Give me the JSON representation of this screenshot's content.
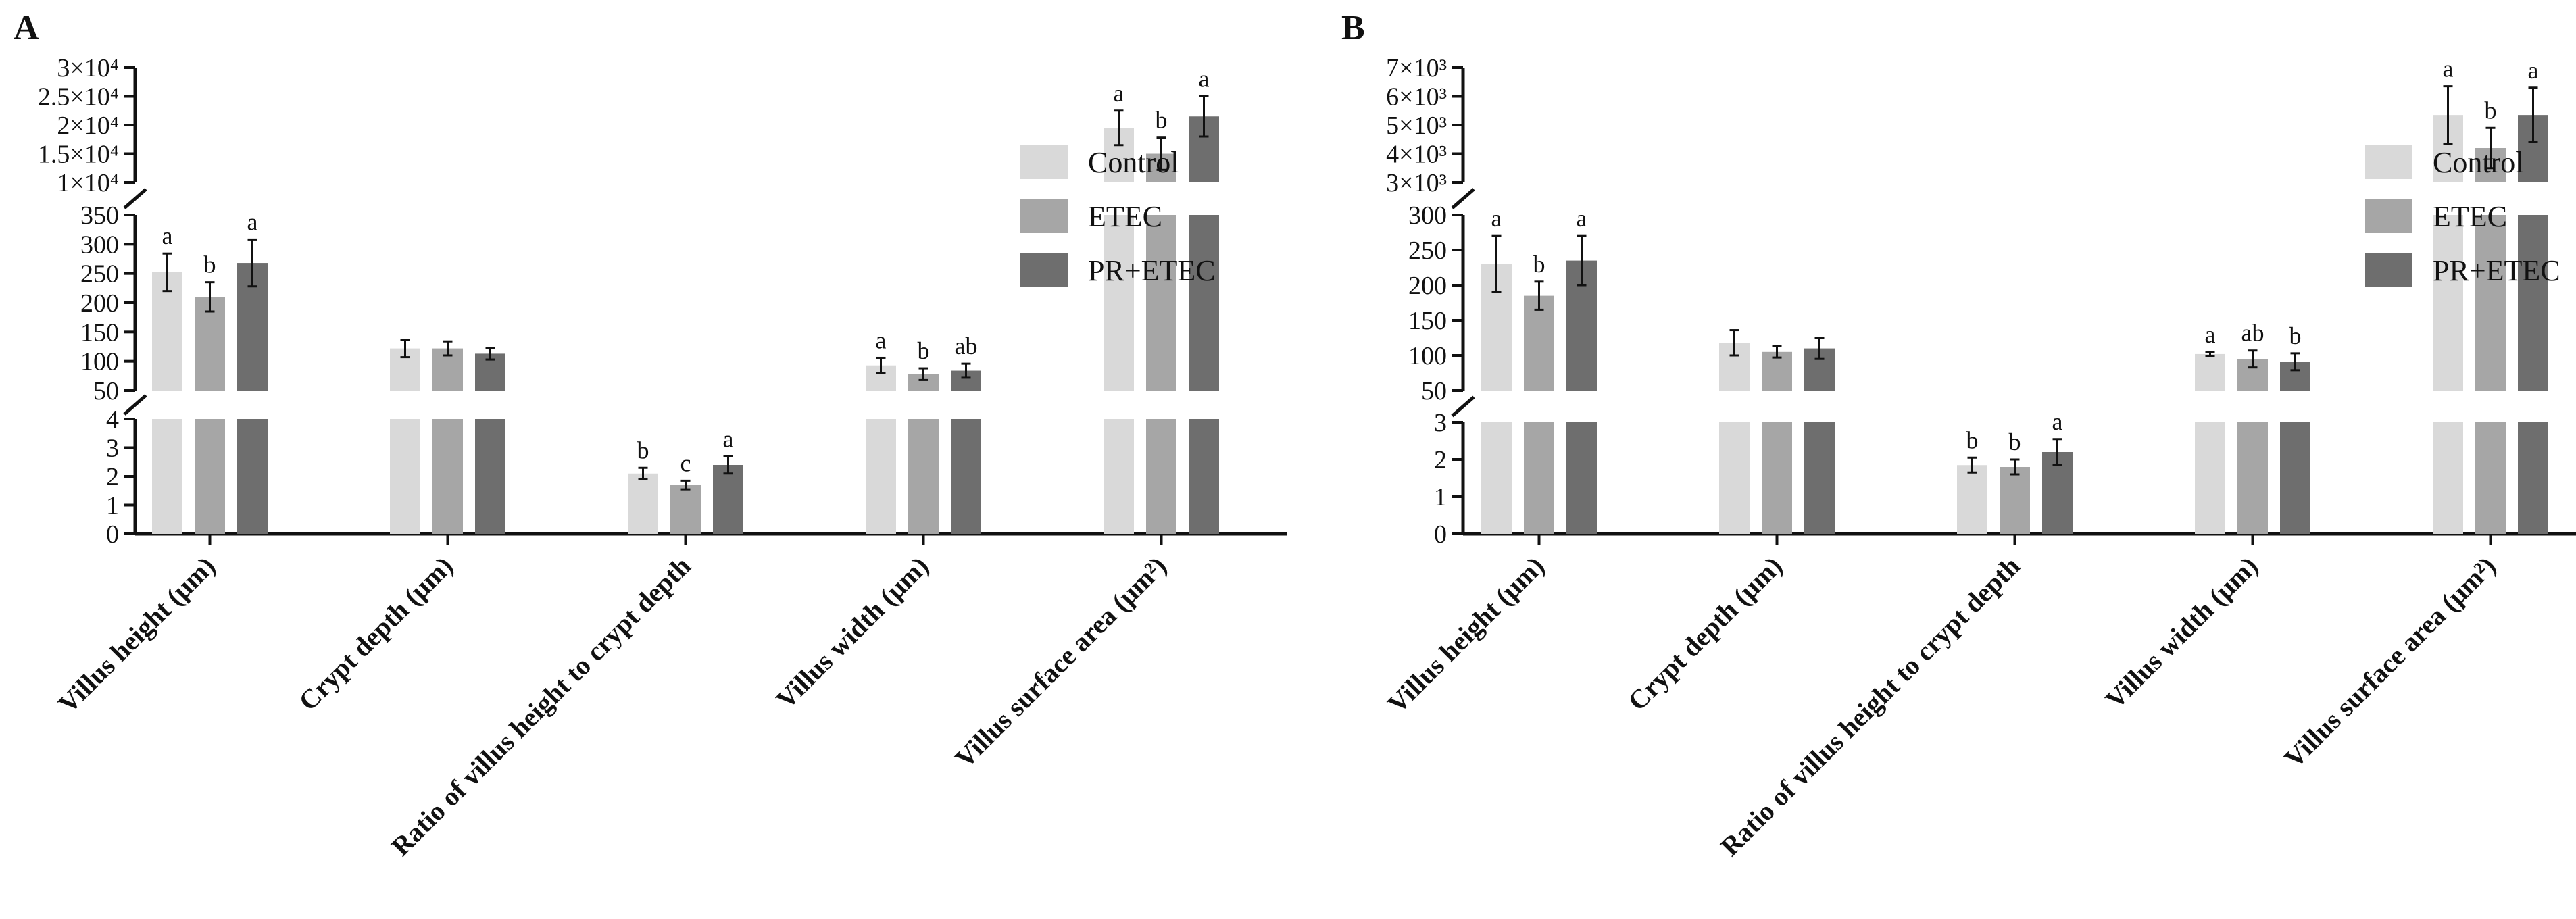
{
  "colors": {
    "control": "#d9d9d9",
    "etec": "#a6a6a6",
    "pr_etec": "#6e6e6e",
    "axis": "#111111"
  },
  "legend": [
    "Control",
    "ETEC",
    "PR+ETEC"
  ],
  "categories": [
    "Villus height (μm)",
    "Crypt depth (μm)",
    "Ratio of villus height to crypt depth",
    "Villus width (μm)",
    "Villus surface area (μm²)"
  ],
  "chart_data": [
    {
      "type": "bar",
      "panel": "A",
      "categories": [
        "Villus height (μm)",
        "Crypt depth (μm)",
        "Ratio of villus height to crypt depth",
        "Villus width (μm)",
        "Villus surface area (μm²)"
      ],
      "series": [
        {
          "name": "Control",
          "values": [
            252,
            122,
            2.1,
            93,
            19500
          ],
          "errors": [
            32,
            15,
            0.2,
            13,
            3000
          ],
          "labels": [
            "a",
            "",
            "b",
            "a",
            "a"
          ]
        },
        {
          "name": "ETEC",
          "values": [
            210,
            122,
            1.7,
            78,
            15000
          ],
          "errors": [
            25,
            12,
            0.15,
            10,
            2800
          ],
          "labels": [
            "b",
            "",
            "c",
            "b",
            "b"
          ]
        },
        {
          "name": "PR+ETEC",
          "values": [
            268,
            113,
            2.4,
            84,
            21500
          ],
          "errors": [
            40,
            10,
            0.3,
            12,
            3500
          ],
          "labels": [
            "a",
            "",
            "a",
            "ab",
            "a"
          ]
        }
      ],
      "segments": [
        {
          "range": [
            0,
            4
          ],
          "ticks": [
            "0",
            "1",
            "2",
            "3",
            "4"
          ],
          "tick_values": [
            0,
            1,
            2,
            3,
            4
          ]
        },
        {
          "range": [
            50,
            350
          ],
          "ticks": [
            "50",
            "100",
            "150",
            "200",
            "250",
            "300",
            "350"
          ],
          "tick_values": [
            50,
            100,
            150,
            200,
            250,
            300,
            350
          ]
        },
        {
          "range": [
            10000,
            30000
          ],
          "ticks": [
            "1×10⁴",
            "1.5×10⁴",
            "2×10⁴",
            "2.5×10⁴",
            "3×10⁴"
          ],
          "tick_values": [
            10000,
            15000,
            20000,
            25000,
            30000
          ]
        }
      ],
      "category_segment": [
        1,
        1,
        0,
        1,
        2
      ]
    },
    {
      "type": "bar",
      "panel": "B",
      "categories": [
        "Villus height (μm)",
        "Crypt depth (μm)",
        "Ratio of villus height to crypt depth",
        "Villus width (μm)",
        "Villus surface area (μm²)"
      ],
      "series": [
        {
          "name": "Control",
          "values": [
            230,
            118,
            1.85,
            102,
            5350
          ],
          "errors": [
            40,
            18,
            0.2,
            3,
            1000
          ],
          "labels": [
            "a",
            "",
            "b",
            "a",
            "a"
          ]
        },
        {
          "name": "ETEC",
          "values": [
            185,
            105,
            1.8,
            95,
            4200
          ],
          "errors": [
            20,
            8,
            0.2,
            12,
            700
          ],
          "labels": [
            "b",
            "",
            "b",
            "ab",
            "b"
          ]
        },
        {
          "name": "PR+ETEC",
          "values": [
            235,
            110,
            2.2,
            91,
            5350
          ],
          "errors": [
            35,
            15,
            0.35,
            12,
            950
          ],
          "labels": [
            "a",
            "",
            "a",
            "b",
            "a"
          ]
        }
      ],
      "segments": [
        {
          "range": [
            0,
            3
          ],
          "ticks": [
            "0",
            "1",
            "2",
            "3"
          ],
          "tick_values": [
            0,
            1,
            2,
            3
          ]
        },
        {
          "range": [
            50,
            300
          ],
          "ticks": [
            "50",
            "100",
            "150",
            "200",
            "250",
            "300"
          ],
          "tick_values": [
            50,
            100,
            150,
            200,
            250,
            300
          ]
        },
        {
          "range": [
            3000,
            7000
          ],
          "ticks": [
            "3×10³",
            "4×10³",
            "5×10³",
            "6×10³",
            "7×10³"
          ],
          "tick_values": [
            3000,
            4000,
            5000,
            6000,
            7000
          ]
        }
      ],
      "category_segment": [
        1,
        1,
        0,
        1,
        2
      ]
    }
  ]
}
